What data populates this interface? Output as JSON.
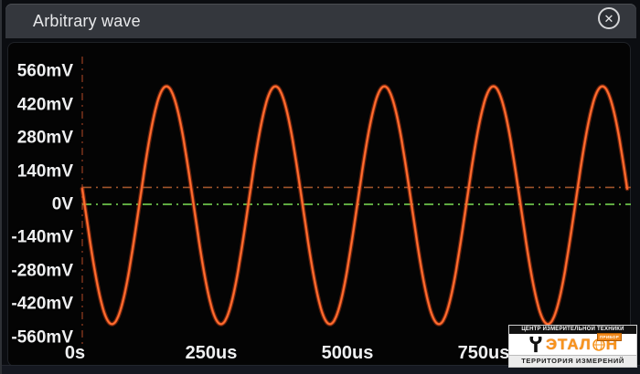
{
  "window": {
    "title": "Arbitrary wave",
    "close_icon": "✕"
  },
  "chart_data": {
    "type": "line",
    "title": "Arbitrary wave",
    "waveform": "sine",
    "amplitude_mV": 500,
    "offset_mV": 0,
    "period_us": 200,
    "frequency_kHz": 5,
    "phase_deg": 172,
    "cycles_visible": 5,
    "x_range_us": [
      0,
      1000
    ],
    "x_ticks": [
      "0s",
      "250us",
      "500us",
      "750us"
    ],
    "x_tick_values_us": [
      0,
      250,
      500,
      750
    ],
    "y_ticks": [
      "560mV",
      "420mV",
      "280mV",
      "140mV",
      "0V",
      "-140mV",
      "-280mV",
      "-420mV",
      "-560mV"
    ],
    "y_tick_values_mV": [
      560,
      420,
      280,
      140,
      0,
      -140,
      -280,
      -420,
      -560
    ],
    "ylim_mV": [
      -560,
      560
    ],
    "zero_line_mV": 0,
    "marker_line_mV": 75,
    "grid": "off",
    "legend": "none",
    "colors": {
      "wave": "#f0541f",
      "wave_glow": "#ff7a38",
      "zero_line": "#6cc24a",
      "marker_line": "#a0552b",
      "axis_line": "#73301a",
      "background": "#040404",
      "label": "#eff0f1"
    }
  },
  "watermark": {
    "top_text": "ЦЕНТР ИЗМЕРИТЕЛЬНОЙ ТЕХНИКИ",
    "brand_left": "ЭТАЛ",
    "brand_right": "Н",
    "brand_full": "ЭТАЛОН",
    "badge": "ПРИБОР",
    "bottom_text": "ТЕРРИТОРИЯ ИЗМЕРЕНИЙ"
  }
}
